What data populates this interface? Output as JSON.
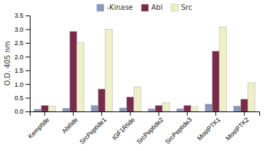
{
  "chart_data": {
    "type": "bar",
    "categories": [
      "Kemptide",
      "Abitide",
      "SrcPeptide1",
      "IGF1Rtide",
      "SrcPeptide2",
      "SrcPeptide3",
      "MostPTK1",
      "MostPTK2"
    ],
    "series": [
      {
        "name": "-Kinase",
        "color": "#8899bb",
        "values": [
          0.08,
          0.12,
          0.22,
          0.13,
          0.1,
          0.1,
          0.27,
          0.2
        ]
      },
      {
        "name": "Abl",
        "color": "#7a2a4a",
        "values": [
          0.22,
          2.92,
          0.82,
          0.53,
          0.22,
          0.22,
          2.2,
          0.45
        ]
      },
      {
        "name": "Src",
        "color": "#f0f0c8",
        "values": [
          0.2,
          2.52,
          3.0,
          0.9,
          0.32,
          0.18,
          3.08,
          1.05
        ]
      }
    ],
    "ylabel": "O.D. 405 nm",
    "ylim": [
      0,
      3.5
    ],
    "yticks": [
      {
        "value": 0,
        "label": "0.0"
      },
      0.5,
      {
        "value": 1.0,
        "label": "1.0"
      },
      1.5,
      {
        "value": 2.0,
        "label": "2.0"
      },
      2.5,
      {
        "value": 3.0,
        "label": "3.0"
      },
      3.5
    ],
    "grid": false,
    "legend": "top"
  }
}
